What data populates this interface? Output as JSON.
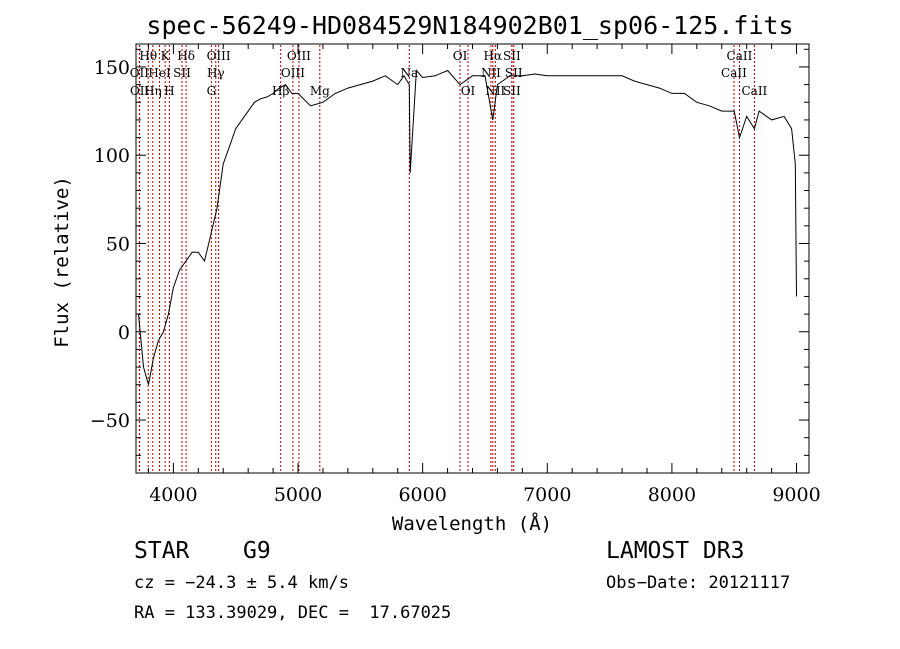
{
  "chart_data": {
    "type": "line",
    "title": "spec-56249-HD084529N184902B01_sp06-125.fits",
    "xlabel": "Wavelength (Å)",
    "ylabel": "Flux (relative)",
    "xlim": [
      3700,
      9100
    ],
    "ylim": [
      -80,
      163
    ],
    "xticks": [
      4000,
      5000,
      6000,
      7000,
      8000,
      9000
    ],
    "yticks": [
      -50,
      0,
      50,
      100,
      150
    ],
    "grid": false,
    "line_color": "#000000",
    "marker_color": "#aa0000",
    "series": [
      {
        "x": [
          3720,
          3760,
          3800,
          3840,
          3880,
          3920,
          3960,
          4000,
          4050,
          4100,
          4150,
          4200,
          4250,
          4300,
          4350,
          4400,
          4450,
          4500,
          4550,
          4600,
          4650,
          4700,
          4750,
          4800,
          4850,
          4900,
          4950,
          5000,
          5100,
          5200,
          5300,
          5400,
          5500,
          5600,
          5700,
          5800,
          5850,
          5893,
          5900,
          5950,
          6000,
          6100,
          6200,
          6300,
          6400,
          6500,
          6563,
          6600,
          6700,
          6800,
          6900,
          7000,
          7100,
          7200,
          7300,
          7400,
          7500,
          7600,
          7700,
          7800,
          7900,
          8000,
          8100,
          8200,
          8300,
          8400,
          8500,
          8542,
          8600,
          8662,
          8700,
          8800,
          8900,
          8960,
          8990,
          9000
        ],
        "y": [
          10,
          -20,
          -30,
          -15,
          -5,
          0,
          10,
          25,
          35,
          40,
          45,
          45,
          40,
          55,
          70,
          95,
          105,
          115,
          120,
          125,
          130,
          132,
          133,
          135,
          138,
          140,
          135,
          135,
          128,
          130,
          135,
          138,
          140,
          142,
          145,
          140,
          145,
          140,
          90,
          148,
          144,
          145,
          148,
          140,
          145,
          145,
          120,
          140,
          145,
          145,
          146,
          145,
          145,
          145,
          145,
          145,
          145,
          145,
          142,
          140,
          138,
          135,
          135,
          130,
          128,
          125,
          125,
          110,
          122,
          115,
          125,
          120,
          122,
          115,
          95,
          20
        ]
      }
    ],
    "line_markers": [
      {
        "label": "Hθ",
        "x": 3798,
        "row": 1
      },
      {
        "label": "OII",
        "x": 3727,
        "row": 2
      },
      {
        "label": "OII",
        "x": 3729,
        "row": 3
      },
      {
        "label": "K",
        "x": 3934,
        "row": 1
      },
      {
        "label": "HeI",
        "x": 3889,
        "row": 2
      },
      {
        "label": "Hη",
        "x": 3835,
        "row": 3
      },
      {
        "label": "H",
        "x": 3968,
        "row": 3
      },
      {
        "label": "Hδ",
        "x": 4102,
        "row": 1
      },
      {
        "label": "SII",
        "x": 4069,
        "row": 2
      },
      {
        "label": "OIII",
        "x": 4363,
        "row": 1
      },
      {
        "label": "Hγ",
        "x": 4340,
        "row": 2
      },
      {
        "label": "G",
        "x": 4305,
        "row": 3
      },
      {
        "label": "OIII",
        "x": 5007,
        "row": 1
      },
      {
        "label": "OIII",
        "x": 4959,
        "row": 2
      },
      {
        "label": "Hβ",
        "x": 4861,
        "row": 3
      },
      {
        "label": "Mg",
        "x": 5175,
        "row": 3
      },
      {
        "label": "Na",
        "x": 5893,
        "row": 2
      },
      {
        "label": "OI",
        "x": 6300,
        "row": 1
      },
      {
        "label": "OI",
        "x": 6364,
        "row": 3
      },
      {
        "label": "Hα",
        "x": 6563,
        "row": 1
      },
      {
        "label": "SII",
        "x": 6716,
        "row": 1
      },
      {
        "label": "NII",
        "x": 6548,
        "row": 2
      },
      {
        "label": "SII",
        "x": 6731,
        "row": 2
      },
      {
        "label": "NII",
        "x": 6583,
        "row": 3
      },
      {
        "label": "SII",
        "x": 6716,
        "row": 3
      },
      {
        "label": "CaII",
        "x": 8542,
        "row": 1
      },
      {
        "label": "CaII",
        "x": 8498,
        "row": 2
      },
      {
        "label": "CaII",
        "x": 8662,
        "row": 3
      }
    ]
  },
  "info": {
    "class": "STAR",
    "subclass": "G9",
    "survey": "LAMOST DR3",
    "cz": "cz = −24.3 ± 5.4 km/s",
    "obs_date": "Obs−Date: 20121117",
    "coords": "RA = 133.39029, DEC =  17.67025"
  }
}
